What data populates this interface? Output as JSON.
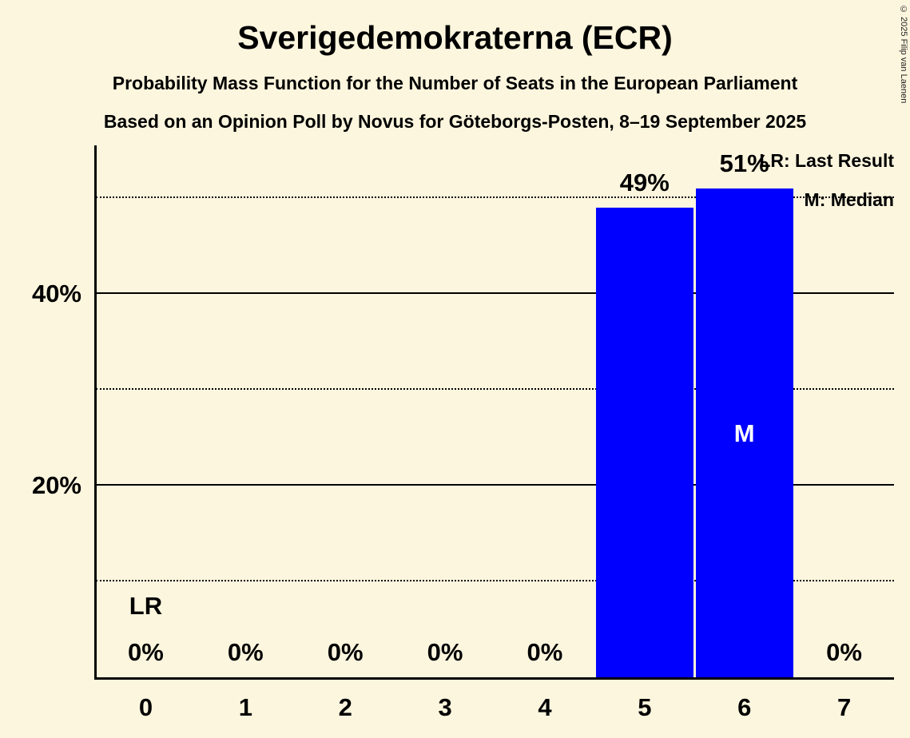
{
  "page": {
    "copyright": "© 2025 Filip van Laenen"
  },
  "chart_data": {
    "type": "bar",
    "title": "Sverigedemokraterna (ECR)",
    "subtitle1": "Probability Mass Function for the Number of Seats in the European Parliament",
    "subtitle2": "Based on an Opinion Poll by Novus for Göteborgs-Posten, 8–19 September 2025",
    "categories": [
      "0",
      "1",
      "2",
      "3",
      "4",
      "5",
      "6",
      "7"
    ],
    "values": [
      0,
      0,
      0,
      0,
      0,
      49,
      51,
      0
    ],
    "bar_labels": [
      "0%",
      "0%",
      "0%",
      "0%",
      "0%",
      "49%",
      "51%",
      "0%"
    ],
    "ylim": [
      0,
      55.5
    ],
    "yticks": [
      {
        "value": 20,
        "label": "20%"
      },
      {
        "value": 40,
        "label": "40%"
      }
    ],
    "solid_gridlines": [
      20,
      40
    ],
    "dotted_gridlines": [
      10,
      30,
      50
    ],
    "grid": true,
    "legend_position": "top-right",
    "legend": [
      "LR: Last Result",
      "M: Median"
    ],
    "annotations": {
      "lr": {
        "label": "LR",
        "category": "0"
      },
      "median": {
        "label": "M",
        "category": "6"
      }
    },
    "bar_color": "#0000ff",
    "background": "#fdf6de",
    "median_text_color": "#ffffff"
  }
}
